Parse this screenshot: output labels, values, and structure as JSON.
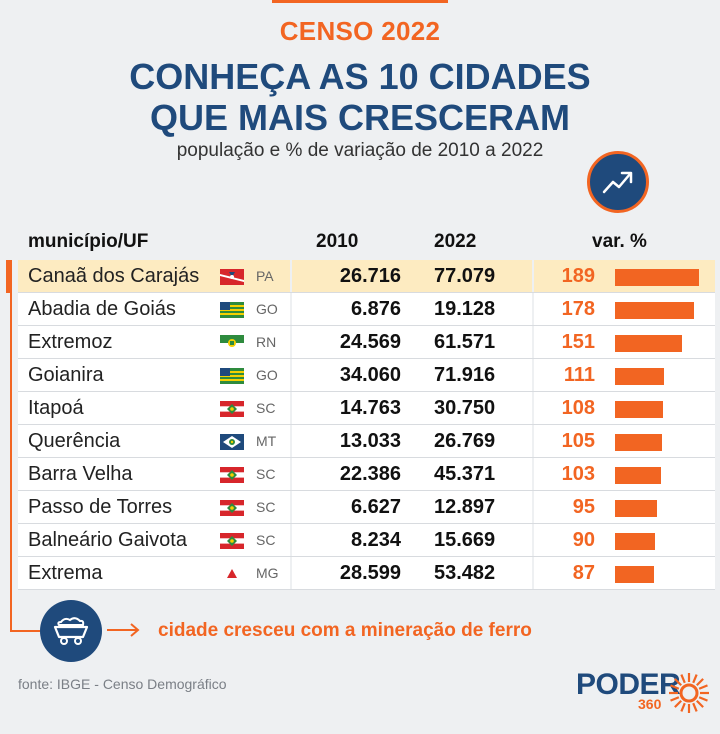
{
  "kicker": "CENSO 2022",
  "title_line1": "CONHEÇA AS 10 CIDADES",
  "title_line2": "QUE MAIS CRESCERAM",
  "subtitle": "população e % de variação de 2010 a 2022",
  "columns": {
    "municipio": "município/UF",
    "y2010": "2010",
    "y2022": "2022",
    "var": "var. %"
  },
  "rows": [
    {
      "city": "Canaã dos Carajás",
      "uf": "PA",
      "flag": "pa-flag-icon",
      "p2010": "26.716",
      "p2022": "77.079",
      "var": "189",
      "highlight": true
    },
    {
      "city": "Abadia de Goiás",
      "uf": "GO",
      "flag": "go-flag-icon",
      "p2010": "6.876",
      "p2022": "19.128",
      "var": "178"
    },
    {
      "city": "Extremoz",
      "uf": "RN",
      "flag": "rn-flag-icon",
      "p2010": "24.569",
      "p2022": "61.571",
      "var": "151"
    },
    {
      "city": "Goianira",
      "uf": "GO",
      "flag": "go-flag-icon",
      "p2010": "34.060",
      "p2022": "71.916",
      "var": "111"
    },
    {
      "city": "Itapoá",
      "uf": "SC",
      "flag": "sc-flag-icon",
      "p2010": "14.763",
      "p2022": "30.750",
      "var": "108"
    },
    {
      "city": "Querência",
      "uf": "MT",
      "flag": "mt-flag-icon",
      "p2010": "13.033",
      "p2022": "26.769",
      "var": "105"
    },
    {
      "city": "Barra Velha",
      "uf": "SC",
      "flag": "sc-flag-icon",
      "p2010": "22.386",
      "p2022": "45.371",
      "var": "103"
    },
    {
      "city": "Passo de Torres",
      "uf": "SC",
      "flag": "sc-flag-icon",
      "p2010": "6.627",
      "p2022": "12.897",
      "var": "95"
    },
    {
      "city": "Balneário Gaivota",
      "uf": "SC",
      "flag": "sc-flag-icon",
      "p2010": "8.234",
      "p2022": "15.669",
      "var": "90"
    },
    {
      "city": "Extrema",
      "uf": "MG",
      "flag": "mg-flag-icon",
      "p2010": "28.599",
      "p2022": "53.482",
      "var": "87"
    }
  ],
  "chart_data": {
    "type": "table",
    "title": "CONHEÇA AS 10 CIDADES QUE MAIS CRESCERAM",
    "subtitle": "população e % de variação de 2010 a 2022",
    "categories": [
      "Canaã dos Carajás",
      "Abadia de Goiás",
      "Extremoz",
      "Goianira",
      "Itapoá",
      "Querência",
      "Barra Velha",
      "Passo de Torres",
      "Balneário Gaivota",
      "Extrema"
    ],
    "series": [
      {
        "name": "2010",
        "values": [
          26716,
          6876,
          24569,
          34060,
          14763,
          13033,
          22386,
          6627,
          8234,
          28599
        ]
      },
      {
        "name": "2022",
        "values": [
          77079,
          19128,
          61571,
          71916,
          30750,
          26769,
          45371,
          12897,
          15669,
          53482
        ]
      },
      {
        "name": "var. %",
        "values": [
          189,
          178,
          151,
          111,
          108,
          105,
          103,
          95,
          90,
          87
        ]
      }
    ]
  },
  "note": "cidade cresceu com a mineração de ferro",
  "source": "fonte: IBGE - Censo Demográfico",
  "logo": {
    "text": "PODER",
    "sub": "360"
  },
  "colors": {
    "accent": "#f26522",
    "navy": "#1f4a7c",
    "highlight": "#fdebc1",
    "background": "#eef0f2"
  }
}
